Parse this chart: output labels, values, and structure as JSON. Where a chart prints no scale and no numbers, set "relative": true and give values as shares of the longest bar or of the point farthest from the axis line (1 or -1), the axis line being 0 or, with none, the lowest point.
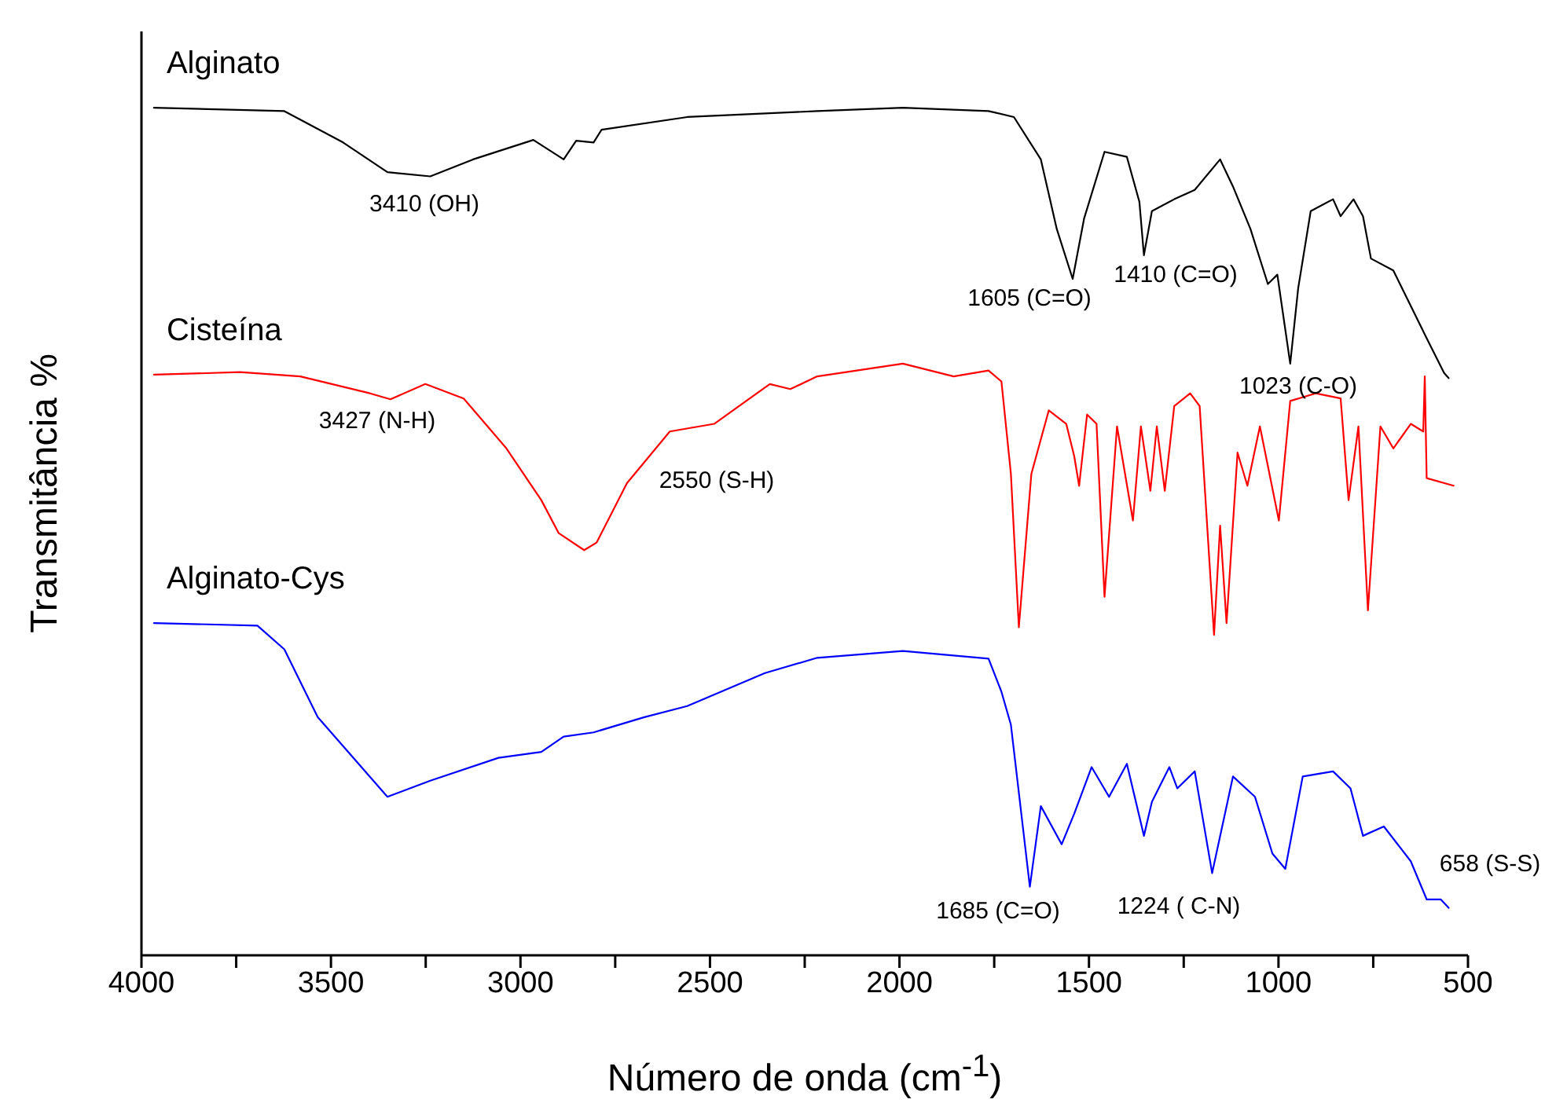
{
  "chart_data": {
    "type": "line",
    "relative": true,
    "xlabel": "Número de onda (cm$^{-1}$)",
    "ylabel": "Transmitância %",
    "legend": false,
    "grid": false,
    "tick_labels": "x",
    "marker": "none",
    "line_style": "solid",
    "xlim": [
      4000,
      500
    ],
    "xticks": [
      4000,
      {
        "value": 3750,
        "label": null
      },
      3500,
      {
        "value": 3250,
        "label": null
      },
      3000,
      {
        "value": 2750,
        "label": null
      },
      2500,
      {
        "value": 2250,
        "label": null
      },
      2000,
      {
        "value": 1750,
        "label": null
      },
      1500,
      {
        "value": 1250,
        "label": null
      },
      1000,
      {
        "value": 750,
        "label": null
      },
      500
    ],
    "series": [
      {
        "name": "Alginato",
        "color": "#000000",
        "x": [
          3967,
          3623,
          3468,
          3351,
          3238,
          3125,
          2966,
          2886,
          2853,
          2807,
          2786,
          2560,
          2217,
          1991,
          1765,
          1698,
          1627,
          1585,
          1543,
          1513,
          1459,
          1400,
          1367,
          1355,
          1334,
          1275,
          1221,
          1154,
          1120,
          1074,
          1028,
          1003,
          969,
          948,
          915,
          856,
          836,
          802,
          777,
          756,
          697,
          609,
          563,
          551
        ],
        "values": [
          1.0,
          0.996,
          0.959,
          0.924,
          0.919,
          0.939,
          0.962,
          0.939,
          0.961,
          0.959,
          0.974,
          0.989,
          0.996,
          1.0,
          0.996,
          0.989,
          0.939,
          0.857,
          0.798,
          0.869,
          0.948,
          0.942,
          0.889,
          0.826,
          0.878,
          0.892,
          0.903,
          0.939,
          0.907,
          0.857,
          0.792,
          0.803,
          0.698,
          0.787,
          0.878,
          0.892,
          0.872,
          0.892,
          0.872,
          0.822,
          0.808,
          0.728,
          0.687,
          0.681
        ]
      },
      {
        "name": "Cisteína",
        "color": "#ff0000",
        "x": [
          3967,
          3740,
          3581,
          3397,
          3343,
          3251,
          3150,
          3037,
          2945,
          2899,
          2832,
          2799,
          2719,
          2606,
          2489,
          2342,
          2288,
          2217,
          1991,
          1857,
          1765,
          1731,
          1706,
          1685,
          1652,
          1606,
          1560,
          1539,
          1526,
          1505,
          1480,
          1459,
          1426,
          1384,
          1363,
          1338,
          1321,
          1300,
          1275,
          1233,
          1208,
          1170,
          1154,
          1137,
          1108,
          1082,
          1049,
          999,
          969,
          902,
          836,
          815,
          789,
          764,
          731,
          697,
          651,
          618,
          614,
          609,
          538
        ],
        "values": [
          0.685,
          0.688,
          0.683,
          0.663,
          0.656,
          0.674,
          0.657,
          0.598,
          0.537,
          0.498,
          0.478,
          0.487,
          0.557,
          0.618,
          0.627,
          0.674,
          0.668,
          0.683,
          0.698,
          0.683,
          0.69,
          0.677,
          0.568,
          0.387,
          0.568,
          0.643,
          0.627,
          0.589,
          0.554,
          0.638,
          0.627,
          0.423,
          0.624,
          0.513,
          0.624,
          0.548,
          0.624,
          0.548,
          0.648,
          0.663,
          0.648,
          0.378,
          0.507,
          0.392,
          0.593,
          0.554,
          0.624,
          0.513,
          0.654,
          0.663,
          0.657,
          0.537,
          0.624,
          0.407,
          0.624,
          0.598,
          0.627,
          0.618,
          0.683,
          0.563,
          0.554
        ]
      },
      {
        "name": "Alginato-Cys",
        "color": "#0000ff",
        "x": [
          3967,
          3694,
          3623,
          3535,
          3351,
          3238,
          3058,
          2945,
          2886,
          2807,
          2673,
          2560,
          2355,
          2217,
          1991,
          1765,
          1731,
          1706,
          1656,
          1627,
          1572,
          1539,
          1493,
          1447,
          1400,
          1355,
          1334,
          1288,
          1267,
          1221,
          1175,
          1120,
          1062,
          1016,
          982,
          936,
          856,
          810,
          777,
          722,
          651,
          609,
          572,
          551
        ],
        "values": [
          0.392,
          0.389,
          0.361,
          0.281,
          0.187,
          0.206,
          0.233,
          0.24,
          0.258,
          0.263,
          0.281,
          0.294,
          0.333,
          0.351,
          0.359,
          0.35,
          0.311,
          0.272,
          0.081,
          0.176,
          0.131,
          0.167,
          0.222,
          0.187,
          0.226,
          0.141,
          0.181,
          0.222,
          0.197,
          0.217,
          0.097,
          0.211,
          0.187,
          0.12,
          0.102,
          0.211,
          0.217,
          0.197,
          0.141,
          0.152,
          0.111,
          0.066,
          0.066,
          0.056
        ]
      }
    ],
    "annotations": [
      "3410 (OH)",
      "1605 (C=O)",
      "1410 (C=O)",
      "1023 (C-O)",
      "3427 (N-H)",
      "2550 (S-H)",
      "1685 (C=O)",
      "1224 ( C-N)",
      "658 (S-S)"
    ]
  }
}
